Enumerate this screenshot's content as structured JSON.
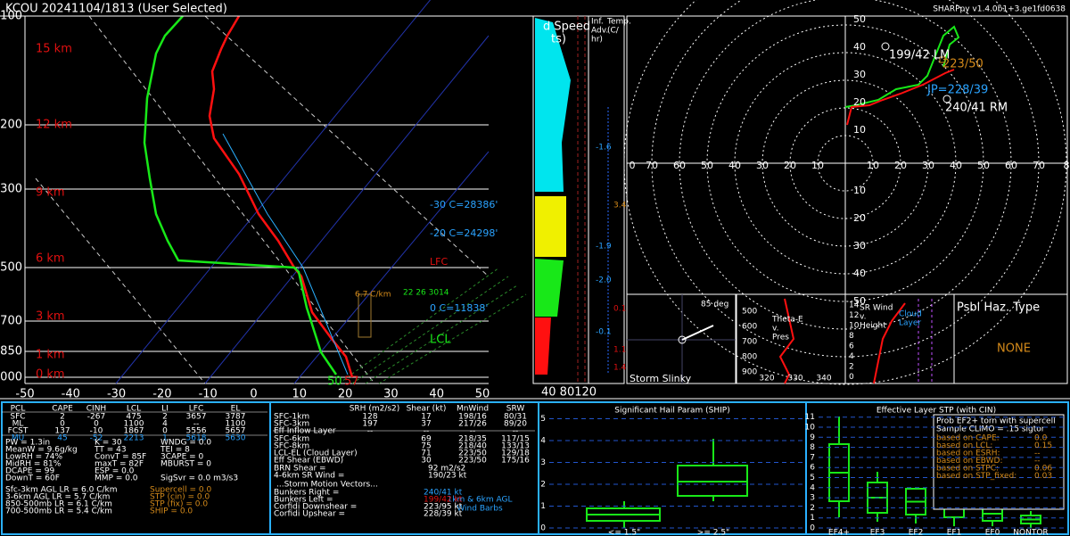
{
  "header": {
    "title": "KCOU   20241104/1813  (User Selected)",
    "version": "SHARPpy v1.4.0b1+3.ge1fd0638"
  },
  "skewt": {
    "pressure_labels": [
      "100",
      "200",
      "300",
      "500",
      "700",
      "850",
      "1000"
    ],
    "height_labels": [
      "15 km",
      "12 km",
      "9 km",
      "6 km",
      "3 km",
      "1 km",
      "0 km"
    ],
    "temp_labels": [
      "-50",
      "-40",
      "-30",
      "-20",
      "-10",
      "0",
      "10",
      "20",
      "30",
      "40",
      "50"
    ],
    "levels": [
      "-30 C=28386'",
      "-20 C=24298'",
      "LFC",
      "0 C=11838'",
      "LCL"
    ],
    "lapse": "6.7 C/km",
    "lapse_values": "22 26 3014",
    "sfc_td": "50",
    "sfc_t": "57"
  },
  "wind_panel": {
    "title": "d Speed",
    "title2": "ts)",
    "ticks": "40 80120"
  },
  "inflow_panel": {
    "title": [
      "Inf.",
      "Adv.",
      "hr)"
    ],
    "title_b": [
      "Temp.",
      "(C/"
    ],
    "values": [
      "-1.6",
      "3.4",
      "-1.9",
      "-2.0",
      "0.1",
      "-0.1",
      "1.1",
      "1.4"
    ]
  },
  "hodograph": {
    "y_labels": [
      "50",
      "40",
      "30",
      "20",
      "10"
    ],
    "x_left": [
      "0",
      "70",
      "60",
      "50",
      "40",
      "30",
      "20",
      "10"
    ],
    "x_right": [
      "10",
      "20",
      "30",
      "40",
      "50",
      "60",
      "70",
      "8"
    ],
    "y_bottom": [
      "10",
      "20",
      "30",
      "40",
      "50"
    ],
    "markers": [
      "199/42 LM",
      "223/50",
      "JP=228/39",
      "240/41 RM"
    ]
  },
  "slinky": {
    "angle": "85 deg",
    "label": "Storm Slinky"
  },
  "theta": {
    "title": [
      "Theta-E",
      "v.",
      "Pres"
    ],
    "pres": [
      "500",
      "600",
      "700",
      "800",
      "900"
    ],
    "temps": [
      "320",
      "330",
      "340"
    ]
  },
  "srwind": {
    "title": [
      "SR Wind",
      "v.",
      "Height"
    ],
    "heights": [
      "14",
      "12",
      "10",
      "8",
      "6",
      "4",
      "2",
      "0"
    ],
    "legend": [
      "Cloud",
      "Layer"
    ]
  },
  "hazard": {
    "title": "Psbl Haz. Type",
    "value": "NONE"
  },
  "thermo": {
    "header": [
      "PCL",
      "CAPE",
      "CINH",
      "LCL",
      "LI",
      "LFC",
      "EL"
    ],
    "rows": [
      [
        "SFC",
        "2",
        "-267",
        "475",
        "2",
        "3657",
        "3787"
      ],
      [
        "ML",
        "0",
        "0",
        "1100",
        "4",
        "--",
        "1100"
      ],
      [
        "FCST",
        "137",
        "-10",
        "1867",
        "0",
        "5556",
        "5657"
      ],
      [
        "MU",
        "45",
        "-52",
        "2213",
        "1",
        "5618",
        "5630"
      ]
    ],
    "indices": [
      [
        "PW = 1.3in",
        "K = 30",
        "WNDG = 0.0"
      ],
      [
        "MeanW = 9.6g/kg",
        "TT = 43",
        "TEI = 8"
      ],
      [
        "LowRH = 74%",
        "ConvT = 85F",
        "3CAPE = 0"
      ],
      [
        "MidRH = 81%",
        "maxT = 82F",
        "MBURST = 0"
      ],
      [
        "DCAPE = 99",
        "ESP = 0.0",
        ""
      ],
      [
        "DownT = 60F",
        "MMP = 0.0",
        "SigSvr = 0.0 m3/s3"
      ]
    ],
    "lapse": [
      "Sfc-3km AGL LR = 6.0 C/km",
      "3-6km AGL LR = 5.7 C/km",
      "850-500mb LR = 6.1 C/km",
      "700-500mb LR = 5.4 C/km"
    ],
    "composites": [
      "Supercell = 0.0",
      "STP (cin) = 0.0",
      "STP (fix) = 0.0",
      "SHIP = 0.0"
    ]
  },
  "kinematic": {
    "header": [
      "SRH (m2/s2)",
      "Shear (kt)",
      "MnWind",
      "SRW"
    ],
    "rows": [
      [
        "SFC-1km",
        "128",
        "17",
        "198/16",
        "80/31"
      ],
      [
        "SFC-3km",
        "197",
        "37",
        "217/26",
        "89/20"
      ],
      [
        "Eff Inflow Layer",
        "--",
        "--",
        "--",
        "--"
      ],
      [
        "SFC-6km",
        "",
        "69",
        "218/35",
        "117/15"
      ],
      [
        "SFC-8km",
        "",
        "75",
        "218/40",
        "133/13"
      ],
      [
        "LCL-EL (Cloud Layer)",
        "",
        "71",
        "223/50",
        "129/18"
      ],
      [
        "Eff Shear (EBWD)",
        "",
        "30",
        "223/50",
        "175/16"
      ]
    ],
    "brn": [
      "BRN Shear =",
      "92 m2/s2"
    ],
    "srw46": [
      "4-6km SR Wind =",
      "190/23 kt"
    ],
    "motion_title": "...Storm Motion Vectors...",
    "motion": [
      [
        "Bunkers Right =",
        "240/41 kt"
      ],
      [
        "Bunkers Left =",
        "199/42 kt"
      ],
      [
        "Corfidi Downshear =",
        "223/95 kt"
      ],
      [
        "Corfidi Upshear =",
        "228/39 kt"
      ]
    ],
    "barbs": [
      "1km & 6km AGL",
      "Wind Barbs"
    ]
  },
  "ship": {
    "title": "Significant Hail Param (SHIP)",
    "yticks": [
      "0",
      "1",
      "2",
      "3",
      "4",
      "5"
    ],
    "categories": [
      "<= 1.5\"",
      ">= 2.5\""
    ]
  },
  "stp": {
    "title": "Effective Layer STP (with CIN)",
    "yticks": [
      "0",
      "1",
      "2",
      "3",
      "4",
      "5",
      "6",
      "7",
      "8",
      "9",
      "10",
      "11"
    ],
    "categories": [
      "EF4+",
      "EF3",
      "EF2",
      "EF1",
      "EF0",
      "NONTOR"
    ],
    "box": [
      "Prob EF2+ torn with supercell",
      "Sample CLIMO = .15 sigtor"
    ],
    "based": [
      [
        "based on CAPE:",
        "0.0"
      ],
      [
        "based on LCL:",
        "0.15"
      ],
      [
        "based on ESRH:",
        "--"
      ],
      [
        "based on EBWD:",
        "--"
      ],
      [
        "based on STPC:",
        "0.06"
      ],
      [
        "based on STP_fixed:",
        "0.03"
      ]
    ]
  }
}
